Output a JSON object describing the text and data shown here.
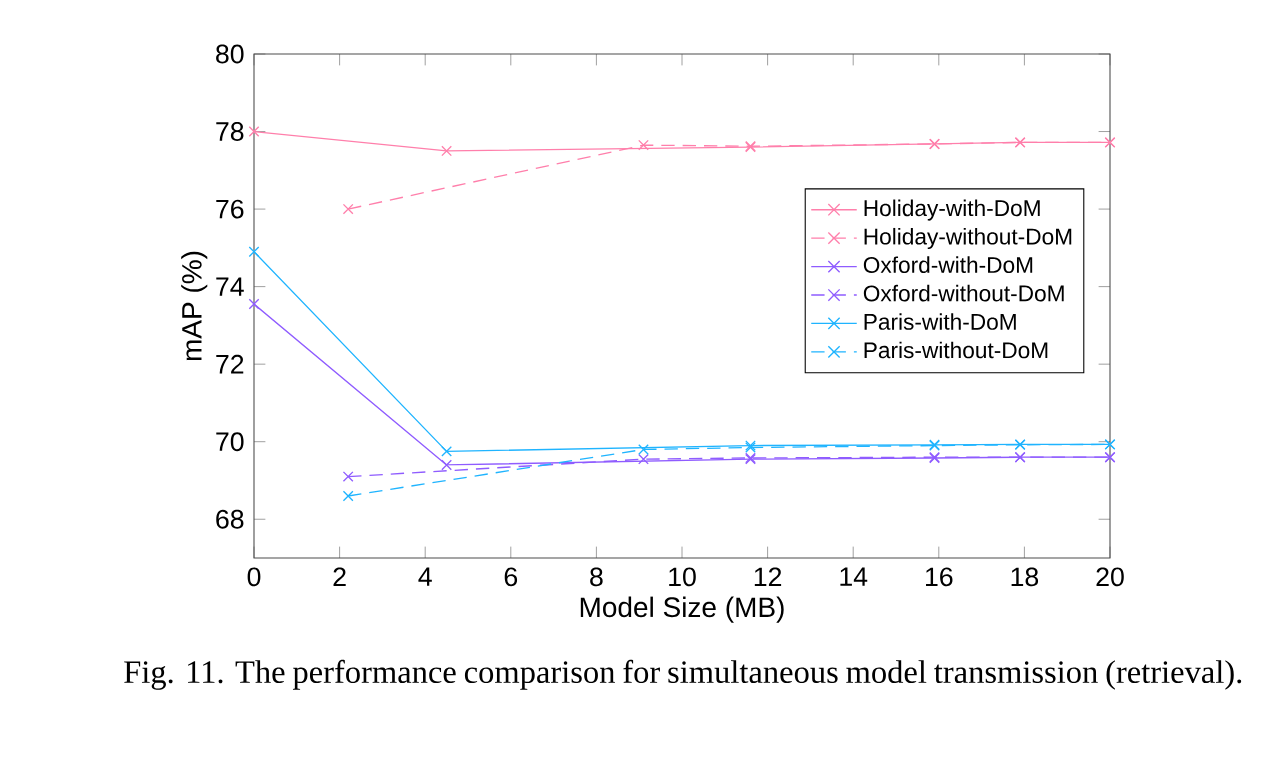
{
  "chart_data": {
    "type": "line",
    "xlabel": "Model Size (MB)",
    "ylabel": "mAP (%)",
    "xlim": [
      0,
      20
    ],
    "ylim": [
      67,
      80
    ],
    "xticks": [
      0,
      2,
      4,
      6,
      8,
      10,
      12,
      14,
      16,
      18,
      20
    ],
    "yticks": [
      68,
      70,
      72,
      74,
      76,
      78,
      80
    ],
    "grid": false,
    "legend": "right",
    "annotations": [
      "Fig. 11.   The performance comparison for simultaneous model transmission (retrieval)."
    ],
    "series": [
      {
        "name": "Holiday-with-DoM",
        "color": "#ff7fab",
        "marker": "cross",
        "line_style": "solid",
        "x": [
          0,
          4.5,
          11.6,
          15.9,
          17.9,
          20
        ],
        "values": [
          78,
          77.5,
          77.6,
          77.68,
          77.72,
          77.72
        ]
      },
      {
        "name": "Holiday-without-DoM",
        "color": "#ff7fab",
        "marker": "cross",
        "line_style": "dashed",
        "x": [
          2.2,
          9.1,
          11.6,
          15.9,
          17.9,
          20
        ],
        "values": [
          76,
          77.65,
          77.62,
          77.68,
          77.72,
          77.72
        ]
      },
      {
        "name": "Oxford-with-DoM",
        "color": "#8f5cff",
        "marker": "cross",
        "line_style": "solid",
        "x": [
          0,
          4.5,
          11.6,
          15.9,
          17.9,
          20
        ],
        "values": [
          73.55,
          69.4,
          69.55,
          69.58,
          69.6,
          69.6
        ]
      },
      {
        "name": "Oxford-without-DoM",
        "color": "#8f5cff",
        "marker": "cross",
        "line_style": "dashed",
        "x": [
          2.2,
          9.1,
          11.6,
          15.9,
          17.9,
          20
        ],
        "values": [
          69.1,
          69.55,
          69.58,
          69.6,
          69.6,
          69.6
        ]
      },
      {
        "name": "Paris-with-DoM",
        "color": "#1fb4ff",
        "marker": "cross",
        "line_style": "solid",
        "x": [
          0,
          4.5,
          11.6,
          15.9,
          17.9,
          20
        ],
        "values": [
          74.9,
          69.75,
          69.9,
          69.92,
          69.93,
          69.93
        ]
      },
      {
        "name": "Paris-without-DoM",
        "color": "#1fb4ff",
        "marker": "cross",
        "line_style": "dashed",
        "x": [
          2.2,
          9.1,
          11.6,
          15.9,
          17.9,
          20
        ],
        "values": [
          68.6,
          69.8,
          69.85,
          69.9,
          69.92,
          69.93
        ]
      }
    ]
  }
}
